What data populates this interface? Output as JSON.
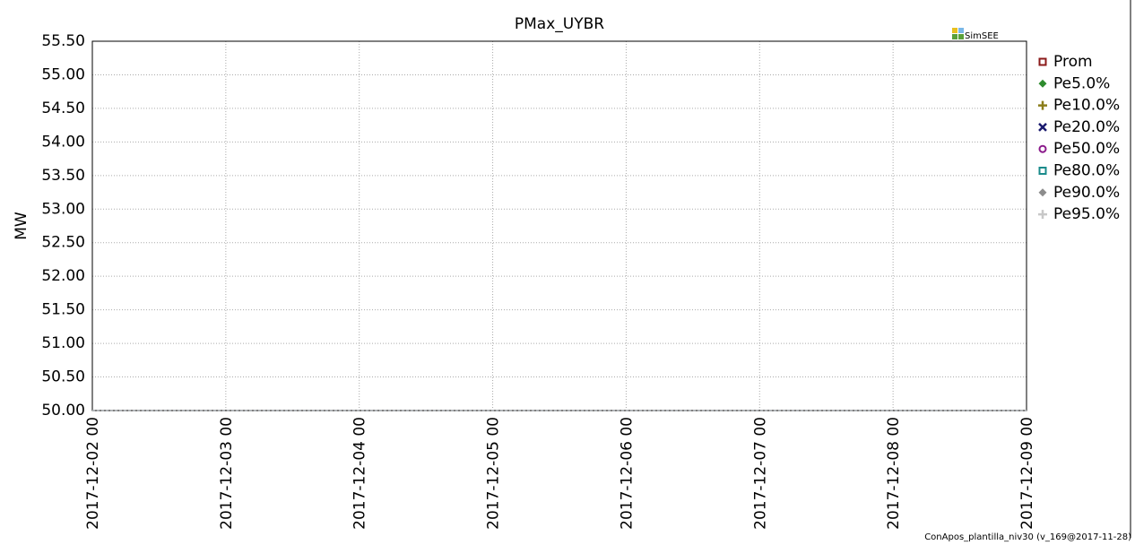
{
  "chart_data": {
    "type": "line",
    "title": "PMax_UYBR",
    "y_label": "MW",
    "logo": "SimSEE",
    "footer": "ConApos_plantilla_niv30 (v_169@2017-11-28)",
    "categories": [
      "2017-12-02 00",
      "2017-12-03 00",
      "2017-12-04 00",
      "2017-12-05 00",
      "2017-12-06 00",
      "2017-12-07 00",
      "2017-12-08 00",
      "2017-12-09 00"
    ],
    "series": [
      {
        "name": "Prom",
        "color": "#8b1a1a",
        "marker": "square",
        "values": [
          50,
          50,
          50,
          50,
          50,
          50,
          50,
          50
        ]
      },
      {
        "name": "Pe5.0%",
        "color": "#2e8b2e",
        "marker": "diamond",
        "values": [
          50,
          50,
          50,
          50,
          50,
          50,
          50,
          50
        ]
      },
      {
        "name": "Pe10.0%",
        "color": "#8b7d1a",
        "marker": "plus",
        "values": [
          50,
          50,
          50,
          50,
          50,
          50,
          50,
          50
        ]
      },
      {
        "name": "Pe20.0%",
        "color": "#1a1a6e",
        "marker": "cross",
        "values": [
          50,
          50,
          50,
          50,
          50,
          50,
          50,
          50
        ]
      },
      {
        "name": "Pe50.0%",
        "color": "#8b1a8b",
        "marker": "circle",
        "values": [
          50,
          50,
          50,
          50,
          50,
          50,
          50,
          50
        ]
      },
      {
        "name": "Pe80.0%",
        "color": "#1a8b8b",
        "marker": "square",
        "values": [
          50,
          50,
          50,
          50,
          50,
          50,
          50,
          50
        ]
      },
      {
        "name": "Pe90.0%",
        "color": "#8c8c8c",
        "marker": "diamond",
        "values": [
          50,
          50,
          50,
          50,
          50,
          50,
          50,
          50
        ]
      },
      {
        "name": "Pe95.0%",
        "color": "#c8c8c8",
        "marker": "plus",
        "values": [
          50,
          50,
          50,
          50,
          50,
          50,
          50,
          50
        ]
      }
    ],
    "ylim": [
      50,
      55.5
    ],
    "yticks": [
      {
        "value": 50,
        "label": "50.00"
      },
      {
        "value": 50.5,
        "label": "50.50"
      },
      {
        "value": 51,
        "label": "51.00"
      },
      {
        "value": 51.5,
        "label": "51.50"
      },
      {
        "value": 52,
        "label": "52.00"
      },
      {
        "value": 52.5,
        "label": "52.50"
      },
      {
        "value": 53,
        "label": "53.00"
      },
      {
        "value": 53.5,
        "label": "53.50"
      },
      {
        "value": 54,
        "label": "54.00"
      },
      {
        "value": 54.5,
        "label": "54.50"
      },
      {
        "value": 55,
        "label": "55.00"
      },
      {
        "value": 55.5,
        "label": "55.50"
      }
    ],
    "grid": true,
    "legend": "right"
  }
}
